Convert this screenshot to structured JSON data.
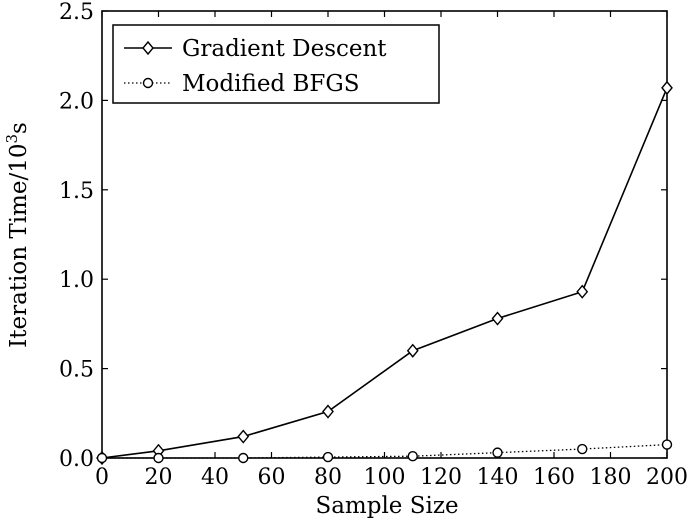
{
  "chart_data": {
    "type": "line",
    "title": "",
    "xlabel": "Sample Size",
    "ylabel": "Iteration Time/10",
    "ylabel_exponent": "3",
    "ylabel_unit": "s",
    "xlim": [
      0,
      200
    ],
    "ylim": [
      0,
      2.5
    ],
    "xticks": [
      0,
      20,
      40,
      60,
      80,
      100,
      120,
      140,
      160,
      180,
      200
    ],
    "yticks": [
      "0.0",
      "0.5",
      "1.0",
      "1.5",
      "2.0",
      "2.5"
    ],
    "grid": false,
    "legend_position": "top-left",
    "series": [
      {
        "name": "Gradient Descent",
        "marker": "diamond",
        "line_style": "solid",
        "color": "#000000",
        "x": [
          0,
          20,
          50,
          80,
          110,
          140,
          170,
          200
        ],
        "values": [
          0.0,
          0.04,
          0.12,
          0.26,
          0.6,
          0.78,
          0.93,
          2.07
        ]
      },
      {
        "name": "Modified BFGS",
        "marker": "circle",
        "line_style": "dotted",
        "color": "#000000",
        "x": [
          0,
          20,
          50,
          80,
          110,
          140,
          170,
          200
        ],
        "values": [
          0.0,
          0.0,
          0.0,
          0.005,
          0.01,
          0.03,
          0.05,
          0.075
        ]
      }
    ]
  }
}
